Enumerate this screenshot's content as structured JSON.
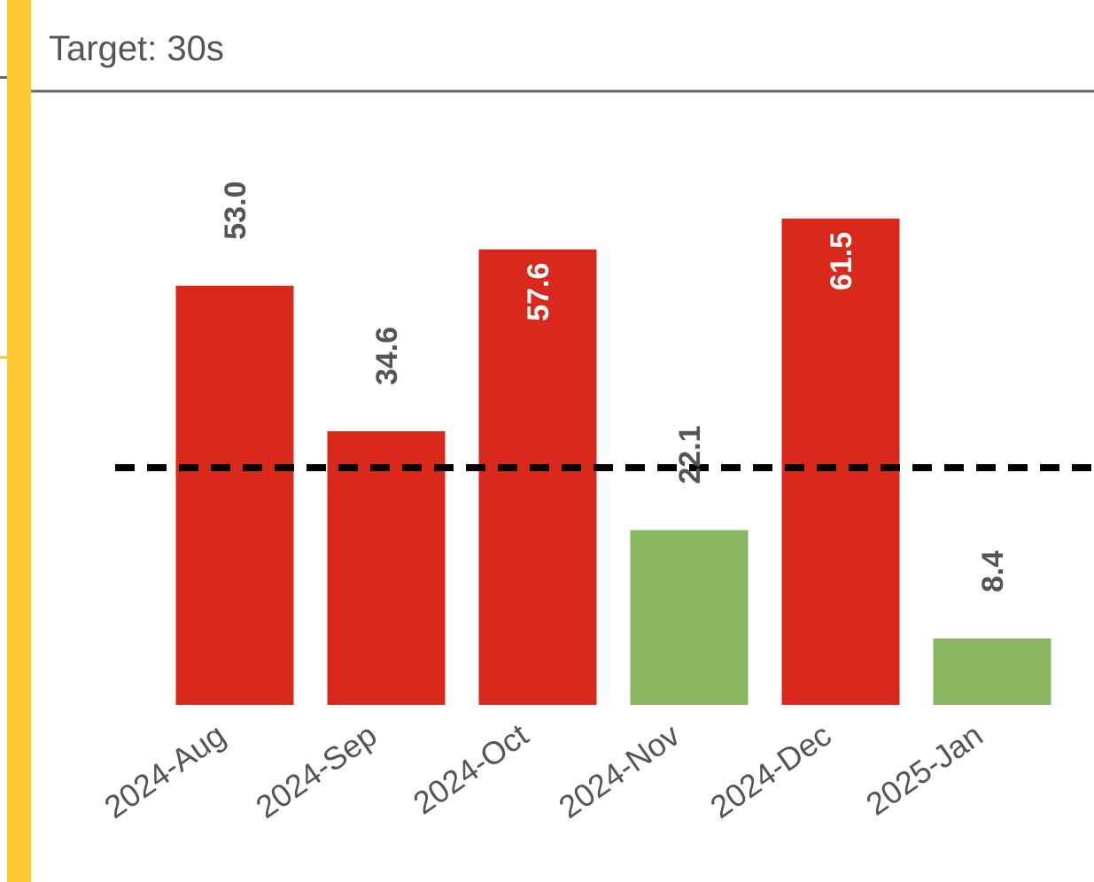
{
  "chart_data": {
    "type": "bar",
    "subtitle": "Target: 30s",
    "categories": [
      "2024-Aug",
      "2024-Sep",
      "2024-Oct",
      "2024-Nov",
      "2024-Dec",
      "2025-Jan"
    ],
    "values": [
      53.0,
      34.6,
      57.6,
      22.1,
      61.5,
      8.4
    ],
    "value_labels": [
      "53.0",
      "34.6",
      "57.6",
      "22.1",
      "61.5",
      "8.4"
    ],
    "colors": [
      "#d9291c",
      "#d9291c",
      "#d9291c",
      "#8ab661",
      "#d9291c",
      "#8ab661"
    ],
    "target": 30,
    "ylim": [
      0,
      77.6
    ]
  }
}
